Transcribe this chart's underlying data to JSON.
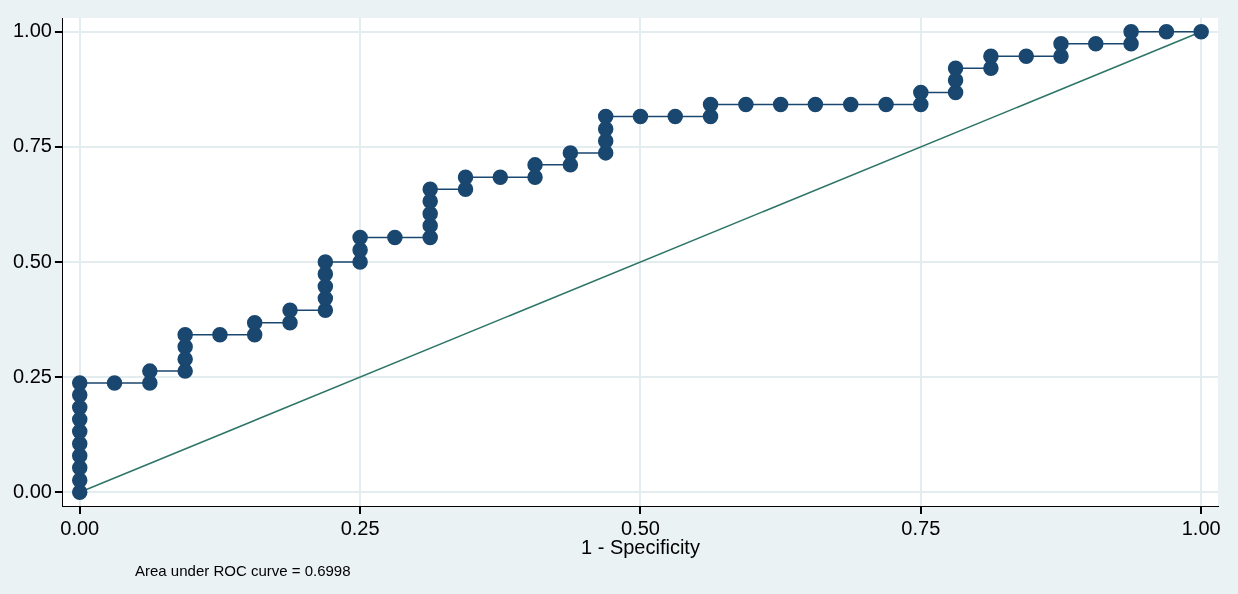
{
  "chart_data": {
    "type": "line",
    "xlabel": "1 - Specificity",
    "annotations": [
      "Area under ROC curve = 0.6998"
    ],
    "xlim": [
      -0.015,
      1.015
    ],
    "ylim": [
      -0.03,
      1.03
    ],
    "xticks": [
      {
        "value": 0,
        "label": "0.00"
      },
      {
        "value": 0.25,
        "label": "0.25"
      },
      {
        "value": 0.5,
        "label": "0.50"
      },
      {
        "value": 0.75,
        "label": "0.75"
      },
      {
        "value": 1,
        "label": "1.00"
      }
    ],
    "yticks": [
      {
        "value": 0,
        "label": "0.00"
      },
      {
        "value": 0.25,
        "label": "0.25"
      },
      {
        "value": 0.5,
        "label": "0.50"
      },
      {
        "value": 0.75,
        "label": "0.75"
      },
      {
        "value": 1,
        "label": "1.00"
      }
    ],
    "grid": true,
    "legend": false,
    "series": [
      {
        "color": "#1a476f",
        "marker": "circle",
        "x": [
          0,
          0,
          0,
          0,
          0,
          0,
          0,
          0,
          0,
          0,
          0.031,
          0.0625,
          0.0625,
          0.094,
          0.094,
          0.094,
          0.094,
          0.125,
          0.156,
          0.156,
          0.1875,
          0.1875,
          0.219,
          0.219,
          0.219,
          0.219,
          0.219,
          0.25,
          0.25,
          0.25,
          0.281,
          0.3125,
          0.3125,
          0.3125,
          0.3125,
          0.3125,
          0.344,
          0.344,
          0.375,
          0.406,
          0.406,
          0.4375,
          0.4375,
          0.469,
          0.469,
          0.469,
          0.469,
          0.5,
          0.531,
          0.5625,
          0.5625,
          0.594,
          0.625,
          0.656,
          0.6875,
          0.719,
          0.75,
          0.75,
          0.781,
          0.781,
          0.781,
          0.8125,
          0.8125,
          0.844,
          0.875,
          0.875,
          0.906,
          0.9375,
          0.9375,
          0.969,
          1
        ],
        "values": [
          0,
          0.026,
          0.053,
          0.079,
          0.105,
          0.132,
          0.158,
          0.184,
          0.211,
          0.237,
          0.237,
          0.237,
          0.263,
          0.263,
          0.289,
          0.316,
          0.342,
          0.342,
          0.342,
          0.368,
          0.368,
          0.395,
          0.395,
          0.421,
          0.447,
          0.474,
          0.5,
          0.5,
          0.526,
          0.553,
          0.553,
          0.553,
          0.579,
          0.605,
          0.632,
          0.658,
          0.658,
          0.684,
          0.684,
          0.684,
          0.711,
          0.711,
          0.737,
          0.737,
          0.763,
          0.789,
          0.816,
          0.816,
          0.816,
          0.816,
          0.842,
          0.842,
          0.842,
          0.842,
          0.842,
          0.842,
          0.842,
          0.868,
          0.868,
          0.895,
          0.921,
          0.921,
          0.947,
          0.947,
          0.947,
          0.974,
          0.974,
          0.974,
          1,
          1,
          1
        ]
      },
      {
        "color": "#2d7566",
        "marker": "none",
        "x": [
          0,
          1
        ],
        "values": [
          0,
          1
        ]
      }
    ]
  }
}
